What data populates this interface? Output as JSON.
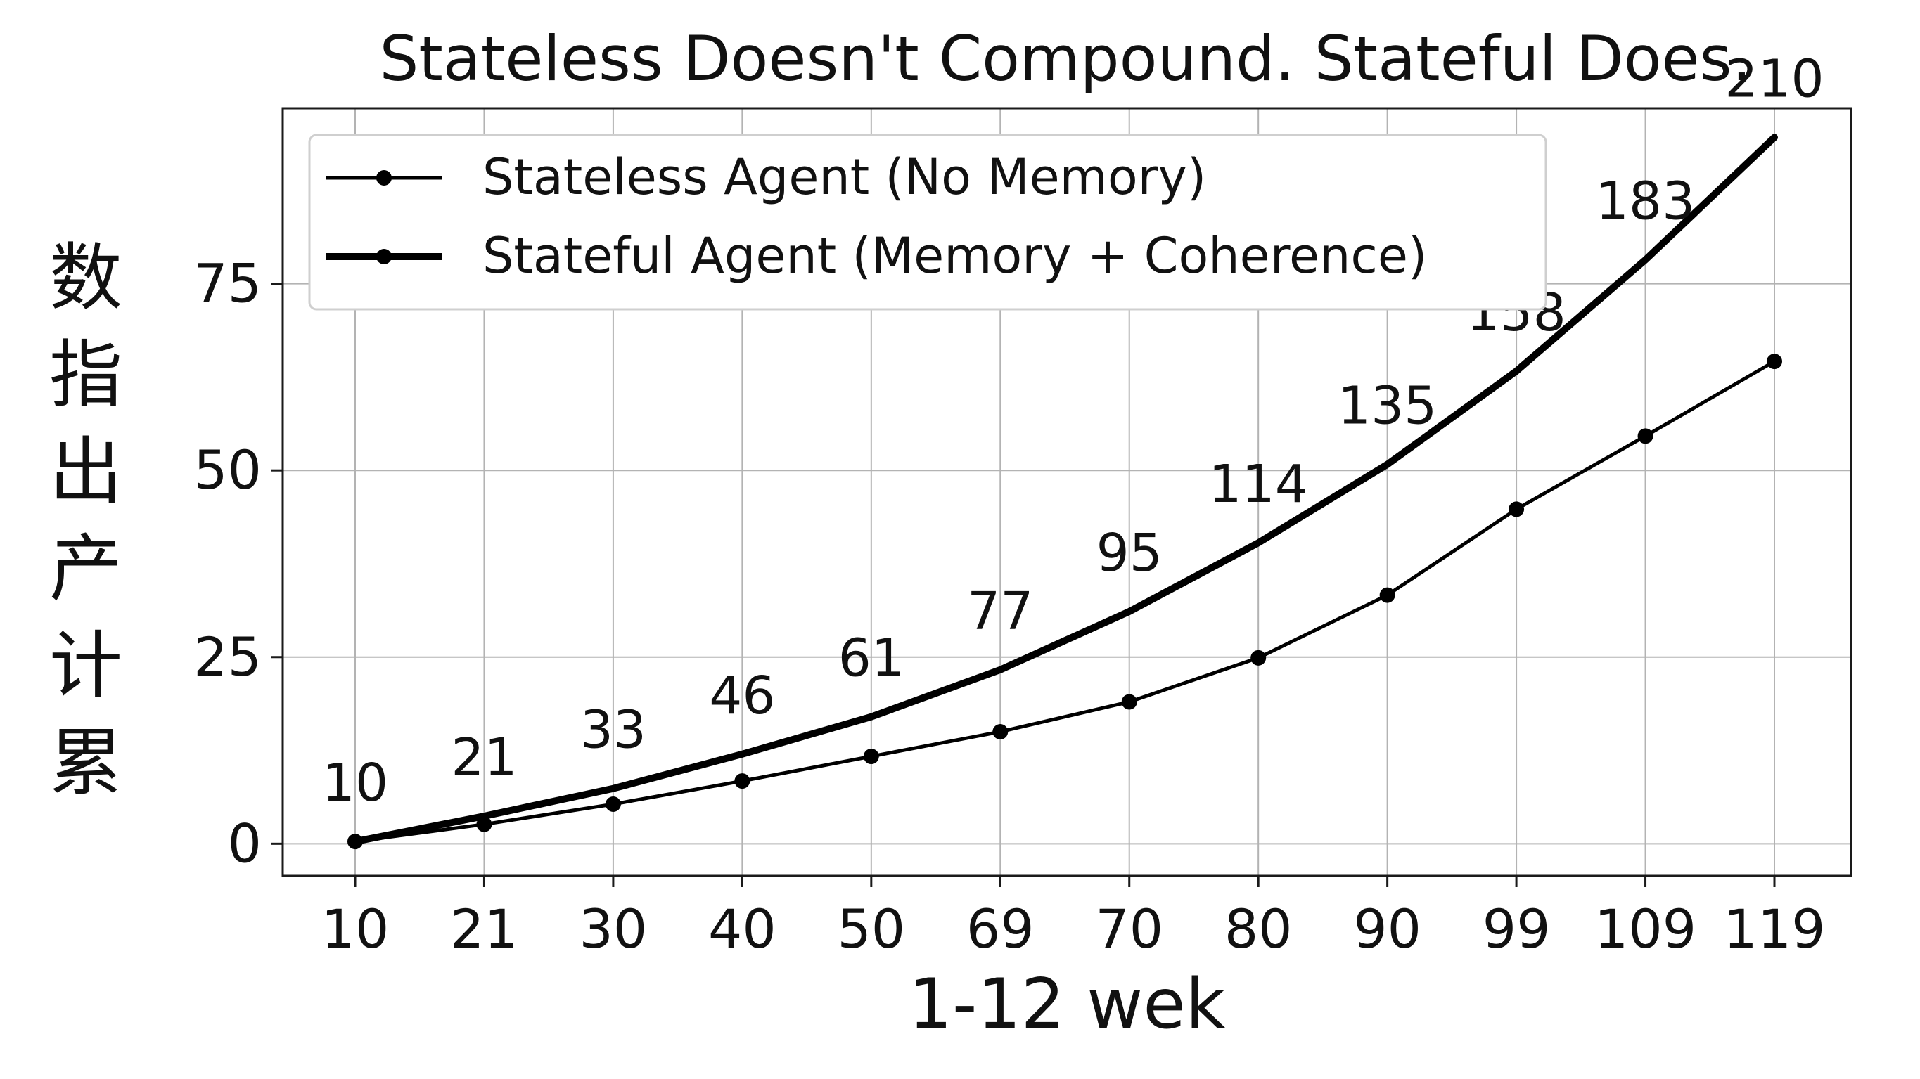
{
  "chart_data": {
    "type": "line",
    "title": "Stateless Doesn't Compound. Stateful Does.",
    "xlabel": "1-12 wek",
    "ylabel": "数指出产计累",
    "categories": [
      "10",
      "21",
      "30",
      "40",
      "50",
      "69",
      "70",
      "80",
      "90",
      "99",
      "109",
      "119"
    ],
    "ylim": [
      -4.3,
      98.5
    ],
    "yticks": [
      0,
      25,
      50,
      75
    ],
    "grid": true,
    "legend_position": "top-left",
    "series": [
      {
        "name": "Stateless Agent (No Memory)",
        "values": [
          0.3,
          2.6,
          5.3,
          8.4,
          11.7,
          15.0,
          19.0,
          24.9,
          33.3,
          44.8,
          54.6,
          64.6
        ],
        "data_labels": [
          "10",
          "21",
          "33",
          "46",
          "61",
          "77",
          "95",
          "114",
          "135",
          "158",
          "183",
          "210"
        ],
        "markers": true,
        "color": "#000000"
      },
      {
        "name": "Stateful Agent (Memory + Coherence)",
        "values": [
          0.3,
          3.7,
          7.4,
          12.0,
          17.0,
          23.3,
          31.1,
          40.3,
          50.8,
          63.3,
          78.2,
          94.6
        ],
        "markers": false,
        "color": "#000000"
      }
    ]
  }
}
